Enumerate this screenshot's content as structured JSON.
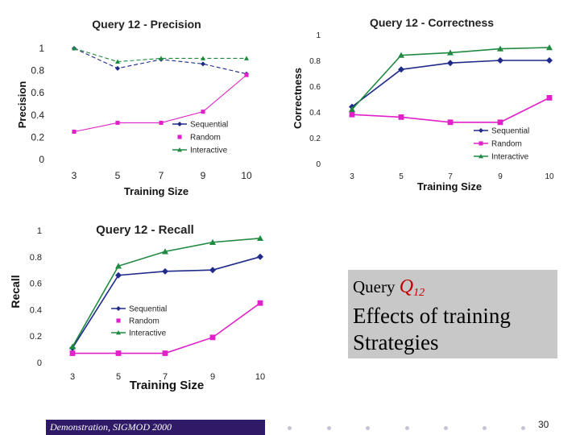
{
  "chart_data": [
    {
      "type": "line",
      "title": "Query 12 - Precision",
      "xlabel": "Training Size",
      "ylabel": "Precision",
      "categories": [
        "3",
        "5",
        "7",
        "9",
        "10"
      ],
      "yticks": [
        "0",
        "0.2",
        "0.4",
        "0.6",
        "0.8",
        "1"
      ],
      "ylim": [
        0,
        1
      ],
      "grid": false,
      "legend": "bottom-right",
      "series": [
        {
          "name": "Sequential",
          "color": "#1f2a8a",
          "marker": "diamond",
          "dash": true,
          "values": [
            1.0,
            0.82,
            0.9,
            0.86,
            0.77
          ]
        },
        {
          "name": "Random",
          "color": "#e020c8",
          "marker": "square",
          "dash": false,
          "values": [
            0.25,
            0.33,
            0.33,
            0.43,
            0.76
          ]
        },
        {
          "name": "Interactive",
          "color": "#208a40",
          "marker": "triangle",
          "dash": true,
          "values": [
            1.0,
            0.88,
            0.91,
            0.91,
            0.91
          ]
        }
      ]
    },
    {
      "type": "line",
      "title": "Query 12 - Correctness",
      "xlabel": "Training Size",
      "ylabel": "Correctness",
      "categories": [
        "3",
        "5",
        "7",
        "9",
        "10"
      ],
      "yticks": [
        "0",
        "0.2",
        "0.4",
        "0.6",
        "0.8",
        "1"
      ],
      "ylim": [
        0,
        1
      ],
      "grid": false,
      "legend": "bottom-right",
      "series": [
        {
          "name": "Sequential",
          "color": "#1f2a8a",
          "marker": "diamond",
          "dash": false,
          "values": [
            0.44,
            0.73,
            0.78,
            0.8,
            0.8
          ]
        },
        {
          "name": "Random",
          "color": "#e020c8",
          "marker": "square",
          "dash": false,
          "values": [
            0.38,
            0.36,
            0.32,
            0.32,
            0.51
          ]
        },
        {
          "name": "Interactive",
          "color": "#208a40",
          "marker": "triangle",
          "dash": false,
          "values": [
            0.42,
            0.84,
            0.86,
            0.89,
            0.9
          ]
        }
      ]
    },
    {
      "type": "line",
      "title": "Query 12 - Recall",
      "xlabel": "Training Size",
      "ylabel": "Recall",
      "categories": [
        "3",
        "5",
        "7",
        "9",
        "10"
      ],
      "yticks": [
        "0",
        "0.2",
        "0.4",
        "0.6",
        "0.8",
        "1"
      ],
      "ylim": [
        0,
        1
      ],
      "grid": false,
      "legend": "middle-center",
      "series": [
        {
          "name": "Sequential",
          "color": "#1f2a8a",
          "marker": "diamond",
          "dash": false,
          "values": [
            0.11,
            0.66,
            0.69,
            0.7,
            0.8
          ]
        },
        {
          "name": "Random",
          "color": "#e020c8",
          "marker": "square",
          "dash": false,
          "values": [
            0.07,
            0.07,
            0.07,
            0.19,
            0.45
          ]
        },
        {
          "name": "Interactive",
          "color": "#208a40",
          "marker": "triangle",
          "dash": false,
          "values": [
            0.12,
            0.73,
            0.84,
            0.91,
            0.94
          ]
        }
      ]
    }
  ],
  "caption": {
    "prefix": "Query ",
    "q": "Q",
    "sub": "12",
    "body": "Effects of training Strategies"
  },
  "footer": {
    "text": "Demonstration, SIGMOD 2000",
    "bar_color": "#2e1a66",
    "page_number": "30"
  }
}
